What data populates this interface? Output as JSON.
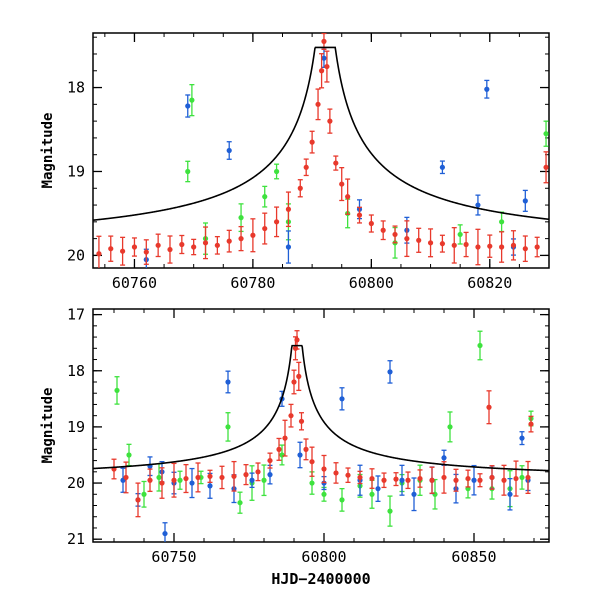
{
  "chart_data": [
    {
      "type": "scatter",
      "panel": "top",
      "ylabel": "Magnitude",
      "xlabel": "",
      "xlim": [
        60753,
        60830
      ],
      "ylim": [
        20.15,
        17.35
      ],
      "y_inverted": true,
      "xticks": [
        60760,
        60780,
        60800,
        60820
      ],
      "yticks": [
        18,
        19,
        20
      ],
      "grid": false,
      "legend": "none",
      "model": {
        "color": "#000000",
        "peak_x": 60792.2,
        "peak_mag": 17.42,
        "baseline_mag": 19.92,
        "width_days": 1.6
      },
      "series": [
        {
          "color": "#e8392c",
          "points": [
            [
              60754,
              19.98
            ],
            [
              60756,
              19.92
            ],
            [
              60758,
              19.95
            ],
            [
              60760,
              19.9
            ],
            [
              60762,
              19.96
            ],
            [
              60764,
              19.88
            ],
            [
              60766,
              19.93
            ],
            [
              60768,
              19.87
            ],
            [
              60770,
              19.9
            ],
            [
              60772,
              19.85
            ],
            [
              60774,
              19.88
            ],
            [
              60776,
              19.83
            ],
            [
              60778,
              19.8
            ],
            [
              60780,
              19.76
            ],
            [
              60782,
              19.68
            ],
            [
              60784,
              19.6
            ],
            [
              60786,
              19.45
            ],
            [
              60788,
              19.2
            ],
            [
              60789,
              18.95
            ],
            [
              60790,
              18.65
            ],
            [
              60791,
              18.2
            ],
            [
              60791.6,
              17.8
            ],
            [
              60792,
              17.45
            ],
            [
              60792.5,
              17.75
            ],
            [
              60793,
              18.4
            ],
            [
              60794,
              18.9
            ],
            [
              60795,
              19.15
            ],
            [
              60796,
              19.3
            ],
            [
              60798,
              19.52
            ],
            [
              60800,
              19.62
            ],
            [
              60802,
              19.7
            ],
            [
              60804,
              19.75
            ],
            [
              60806,
              19.8
            ],
            [
              60808,
              19.82
            ],
            [
              60810,
              19.85
            ],
            [
              60812,
              19.86
            ],
            [
              60814,
              19.88
            ],
            [
              60816,
              19.87
            ],
            [
              60818,
              19.9
            ],
            [
              60820,
              19.89
            ],
            [
              60822,
              19.9
            ],
            [
              60824,
              19.88
            ],
            [
              60826,
              19.92
            ],
            [
              60828,
              19.9
            ],
            [
              60829.5,
              18.95
            ]
          ]
        },
        {
          "color": "#1f5fd6",
          "points": [
            [
              60762,
              20.05
            ],
            [
              60769,
              18.22
            ],
            [
              60776,
              18.75
            ],
            [
              60786,
              19.9
            ],
            [
              60792,
              17.65
            ],
            [
              60798,
              19.45
            ],
            [
              60806,
              19.7
            ],
            [
              60812,
              18.95
            ],
            [
              60818,
              19.4
            ],
            [
              60819.5,
              18.02
            ],
            [
              60824,
              19.9
            ],
            [
              60826,
              19.35
            ]
          ]
        },
        {
          "color": "#3ee23e",
          "points": [
            [
              60769,
              19.0
            ],
            [
              60769.7,
              18.15
            ],
            [
              60772,
              19.8
            ],
            [
              60778,
              19.55
            ],
            [
              60782,
              19.3
            ],
            [
              60784,
              19.0
            ],
            [
              60786,
              19.6
            ],
            [
              60796,
              19.5
            ],
            [
              60804,
              19.85
            ],
            [
              60815,
              19.75
            ],
            [
              60822,
              19.6
            ],
            [
              60829.5,
              18.55
            ]
          ]
        }
      ]
    },
    {
      "type": "scatter",
      "panel": "bottom",
      "ylabel": "Magnitude",
      "xlabel": "HJD−2400000",
      "xlim": [
        60723,
        60875
      ],
      "ylim": [
        21.05,
        16.9
      ],
      "y_inverted": true,
      "xticks": [
        60750,
        60800,
        60850
      ],
      "yticks": [
        17,
        18,
        19,
        20,
        21
      ],
      "grid": false,
      "legend": "none",
      "model": {
        "color": "#000000",
        "peak_x": 60791,
        "peak_mag": 17.45,
        "baseline_mag": 19.95,
        "width_days": 1.6
      },
      "series": [
        {
          "color": "#e8392c",
          "points": [
            [
              60730,
              19.75
            ],
            [
              60734,
              19.9
            ],
            [
              60738,
              20.3
            ],
            [
              60742,
              19.95
            ],
            [
              60746,
              20.0
            ],
            [
              60750,
              19.95
            ],
            [
              60754,
              19.92
            ],
            [
              60758,
              19.9
            ],
            [
              60762,
              19.88
            ],
            [
              60766,
              19.9
            ],
            [
              60770,
              19.88
            ],
            [
              60774,
              19.85
            ],
            [
              60778,
              19.8
            ],
            [
              60782,
              19.6
            ],
            [
              60785,
              19.4
            ],
            [
              60787,
              19.2
            ],
            [
              60789,
              18.8
            ],
            [
              60790,
              18.2
            ],
            [
              60790.5,
              17.6
            ],
            [
              60791,
              17.45
            ],
            [
              60791.6,
              18.1
            ],
            [
              60792.5,
              18.9
            ],
            [
              60794,
              19.4
            ],
            [
              60796,
              19.62
            ],
            [
              60800,
              19.75
            ],
            [
              60804,
              19.82
            ],
            [
              60808,
              19.86
            ],
            [
              60812,
              19.9
            ],
            [
              60816,
              19.92
            ],
            [
              60820,
              19.95
            ],
            [
              60824,
              19.93
            ],
            [
              60828,
              19.95
            ],
            [
              60832,
              19.92
            ],
            [
              60836,
              19.95
            ],
            [
              60840,
              19.9
            ],
            [
              60844,
              19.95
            ],
            [
              60848,
              19.92
            ],
            [
              60852,
              19.95
            ],
            [
              60855,
              18.65
            ],
            [
              60856,
              19.9
            ],
            [
              60860,
              19.95
            ],
            [
              60864,
              19.92
            ],
            [
              60868,
              19.9
            ],
            [
              60869,
              18.95
            ]
          ]
        },
        {
          "color": "#1f5fd6",
          "points": [
            [
              60733,
              19.95
            ],
            [
              60738,
              20.3
            ],
            [
              60742,
              19.7
            ],
            [
              60746,
              19.8
            ],
            [
              60747,
              20.9
            ],
            [
              60750,
              20.0
            ],
            [
              60756,
              20.0
            ],
            [
              60762,
              20.05
            ],
            [
              60768,
              18.2
            ],
            [
              60770,
              20.1
            ],
            [
              60776,
              19.95
            ],
            [
              60782,
              19.85
            ],
            [
              60786,
              18.5
            ],
            [
              60792,
              19.5
            ],
            [
              60800,
              20.0
            ],
            [
              60806,
              18.5
            ],
            [
              60812,
              19.95
            ],
            [
              60818,
              20.1
            ],
            [
              60822,
              18.02
            ],
            [
              60826,
              19.95
            ],
            [
              60830,
              20.2
            ],
            [
              60836,
              19.95
            ],
            [
              60840,
              19.55
            ],
            [
              60844,
              20.1
            ],
            [
              60850,
              19.95
            ],
            [
              60856,
              19.9
            ],
            [
              60862,
              20.2
            ],
            [
              60866,
              19.2
            ],
            [
              60868,
              19.95
            ]
          ]
        },
        {
          "color": "#3ee23e",
          "points": [
            [
              60731,
              18.35
            ],
            [
              60735,
              19.5
            ],
            [
              60740,
              20.2
            ],
            [
              60745,
              19.9
            ],
            [
              60752,
              19.95
            ],
            [
              60759,
              19.9
            ],
            [
              60768,
              19.0
            ],
            [
              60772,
              20.35
            ],
            [
              60776,
              20.0
            ],
            [
              60780,
              19.95
            ],
            [
              60786,
              19.5
            ],
            [
              60796,
              20.0
            ],
            [
              60800,
              20.2
            ],
            [
              60806,
              20.3
            ],
            [
              60812,
              20.05
            ],
            [
              60816,
              20.2
            ],
            [
              60822,
              20.5
            ],
            [
              60826,
              20.0
            ],
            [
              60832,
              19.95
            ],
            [
              60837,
              20.2
            ],
            [
              60842,
              19.0
            ],
            [
              60848,
              20.1
            ],
            [
              60852,
              17.55
            ],
            [
              60856,
              20.1
            ],
            [
              60862,
              20.1
            ],
            [
              60866,
              19.9
            ],
            [
              60869,
              18.85
            ]
          ]
        }
      ]
    }
  ]
}
